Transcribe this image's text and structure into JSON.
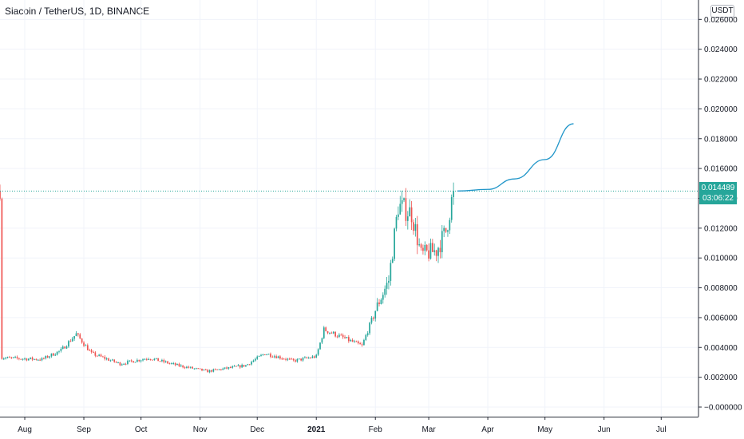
{
  "header": {
    "title": "Siacoin / TetherUS, 1D, BINANCE",
    "currency": "USDT"
  },
  "price_label": {
    "value": "0.014489",
    "countdown": "03:06:22"
  },
  "colors": {
    "up": "#26a69a",
    "down": "#ef5350",
    "projection": "#2196c9",
    "grid": "#f0f3fa"
  },
  "chart_data": {
    "type": "candlestick",
    "x_ticks": [
      "Aug",
      "Sep",
      "Oct",
      "Nov",
      "Dec",
      "2021",
      "Feb",
      "Mar",
      "Apr",
      "May",
      "Jun",
      "Jul"
    ],
    "y_ticks": [
      "0.026000",
      "0.024000",
      "0.022000",
      "0.020000",
      "0.018000",
      "0.016000",
      "0.014000",
      "0.012000",
      "0.010000",
      "0.008000",
      "0.006000",
      "0.004000",
      "0.002000",
      "−0.000000"
    ],
    "ylim": [
      -0.0003,
      0.0268
    ],
    "last_price": 0.014489,
    "grid": true,
    "close_trace": [
      {
        "date": "2020-07-20",
        "close": 0.0033
      },
      {
        "date": "2020-08-10",
        "close": 0.0032
      },
      {
        "date": "2020-08-20",
        "close": 0.0038
      },
      {
        "date": "2020-08-28",
        "close": 0.0049
      },
      {
        "date": "2020-09-05",
        "close": 0.0036
      },
      {
        "date": "2020-09-20",
        "close": 0.0029
      },
      {
        "date": "2020-10-05",
        "close": 0.0033
      },
      {
        "date": "2020-10-20",
        "close": 0.0028
      },
      {
        "date": "2020-11-05",
        "close": 0.0024
      },
      {
        "date": "2020-11-25",
        "close": 0.0028
      },
      {
        "date": "2020-12-05",
        "close": 0.0036
      },
      {
        "date": "2020-12-20",
        "close": 0.0031
      },
      {
        "date": "2021-01-01",
        "close": 0.0034
      },
      {
        "date": "2021-01-05",
        "close": 0.0052
      },
      {
        "date": "2021-01-25",
        "close": 0.0041
      },
      {
        "date": "2021-02-01",
        "close": 0.0065
      },
      {
        "date": "2021-02-08",
        "close": 0.0085
      },
      {
        "date": "2021-02-13",
        "close": 0.0135
      },
      {
        "date": "2021-02-20",
        "close": 0.013
      },
      {
        "date": "2021-02-25",
        "close": 0.0102
      },
      {
        "date": "2021-03-05",
        "close": 0.0105
      },
      {
        "date": "2021-03-10",
        "close": 0.0118
      },
      {
        "date": "2021-03-14",
        "close": 0.0145
      }
    ],
    "projection": [
      {
        "date": "2021-03-16",
        "value": 0.01449
      },
      {
        "date": "2021-04-01",
        "value": 0.0146
      },
      {
        "date": "2021-04-15",
        "value": 0.0153
      },
      {
        "date": "2021-05-01",
        "value": 0.0166
      },
      {
        "date": "2021-05-16",
        "value": 0.019
      }
    ]
  }
}
